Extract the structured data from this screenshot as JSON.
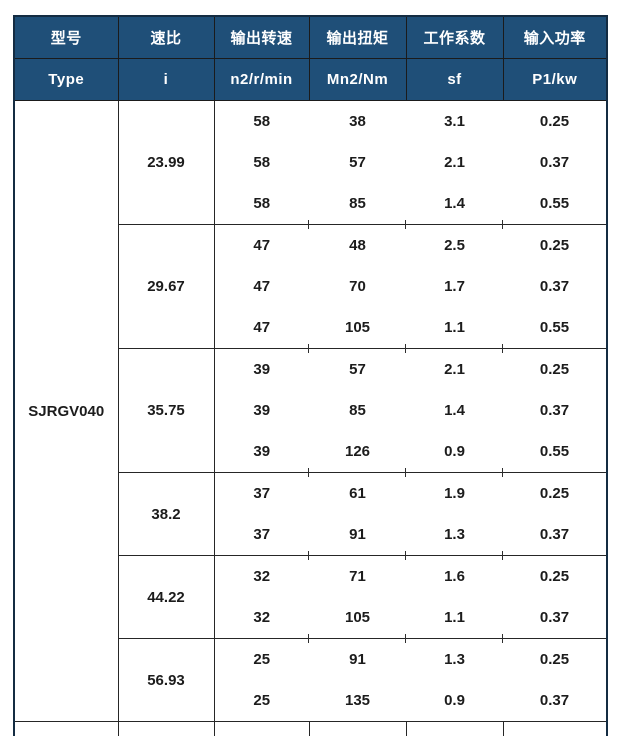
{
  "colors": {
    "header_bg": "#1f4f78",
    "header_text": "#ffffff",
    "border": "#262626",
    "outer_border": "#142c42",
    "body_text": "#1c1c1c",
    "page_bg": "#ffffff"
  },
  "table": {
    "header_cn": [
      "型号",
      "速比",
      "输出转速",
      "输出扭矩",
      "工作系数",
      "输入功率"
    ],
    "header_en": [
      "Type",
      "i",
      "n2/r/min",
      "Mn2/Nm",
      "sf",
      "P1/kw"
    ],
    "model": "SJRGV040",
    "groups": [
      {
        "ratio": "23.99",
        "rows": [
          [
            "58",
            "38",
            "3.1",
            "0.25"
          ],
          [
            "58",
            "57",
            "2.1",
            "0.37"
          ],
          [
            "58",
            "85",
            "1.4",
            "0.55"
          ]
        ]
      },
      {
        "ratio": "29.67",
        "rows": [
          [
            "47",
            "48",
            "2.5",
            "0.25"
          ],
          [
            "47",
            "70",
            "1.7",
            "0.37"
          ],
          [
            "47",
            "105",
            "1.1",
            "0.55"
          ]
        ]
      },
      {
        "ratio": "35.75",
        "rows": [
          [
            "39",
            "57",
            "2.1",
            "0.25"
          ],
          [
            "39",
            "85",
            "1.4",
            "0.37"
          ],
          [
            "39",
            "126",
            "0.9",
            "0.55"
          ]
        ]
      },
      {
        "ratio": "38.2",
        "rows": [
          [
            "37",
            "61",
            "1.9",
            "0.25"
          ],
          [
            "37",
            "91",
            "1.3",
            "0.37"
          ]
        ]
      },
      {
        "ratio": "44.22",
        "rows": [
          [
            "32",
            "71",
            "1.6",
            "0.25"
          ],
          [
            "32",
            "105",
            "1.1",
            "0.37"
          ]
        ]
      },
      {
        "ratio": "56.93",
        "rows": [
          [
            "25",
            "91",
            "1.3",
            "0.25"
          ],
          [
            "25",
            "135",
            "0.9",
            "0.37"
          ]
        ]
      }
    ]
  }
}
